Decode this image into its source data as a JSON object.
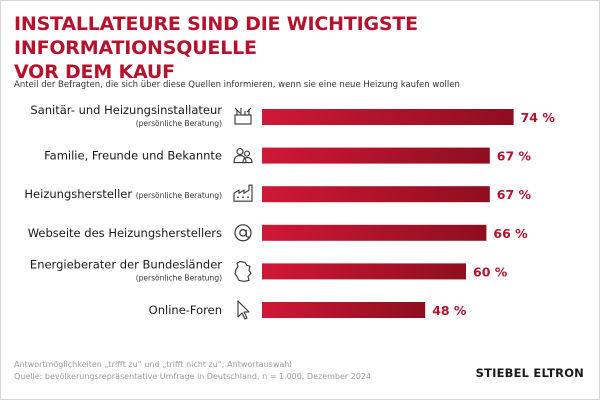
{
  "colors": {
    "accent": "#b5122e",
    "bar_start": "#cf1837",
    "bar_end": "#8e0e1f"
  },
  "title_lines": [
    "INSTALLATEURE SIND DIE WICHTIGSTE INFORMATIONSQUELLE",
    "VOR DEM KAUF"
  ],
  "subtitle": "Anteil der Befragten, die sich über diese Quellen informieren, wenn sie eine neue Heizung kaufen wollen",
  "footer": {
    "line1": "Antwortmöglichkeiten „trifft zu“ und „trifft nicht zu“; Antwortauswahl",
    "line2": "Quelle: bevölkerungsrepräsentative Umfrage in Deutschland, n = 1.000, Dezember 2024"
  },
  "brand": "STIEBEL ELTRON",
  "chart_data": {
    "type": "bar",
    "orientation": "horizontal",
    "unit": "%",
    "xlim": [
      0,
      100
    ],
    "grid": false,
    "categories": [
      "Sanitär- und Heizungsinstallateur",
      "Familie, Freunde und Bekannte",
      "Heizungshersteller",
      "Webseite des Heizungsherstellers",
      "Energieberater der Bundesländer",
      "Online-Foren"
    ],
    "category_notes": [
      "(persönliche Beratung)",
      "",
      "(persönliche Beratung)",
      "",
      "(persönliche Beratung)",
      ""
    ],
    "values": [
      74,
      67,
      67,
      66,
      60,
      48
    ],
    "value_labels": [
      "74 %",
      "67 %",
      "67 %",
      "66 %",
      "60 %",
      "48 %"
    ],
    "icons": [
      "installer-icon",
      "people-icon",
      "factory-icon",
      "at-sign-icon",
      "germany-map-icon",
      "mouse-cursor-icon"
    ]
  }
}
